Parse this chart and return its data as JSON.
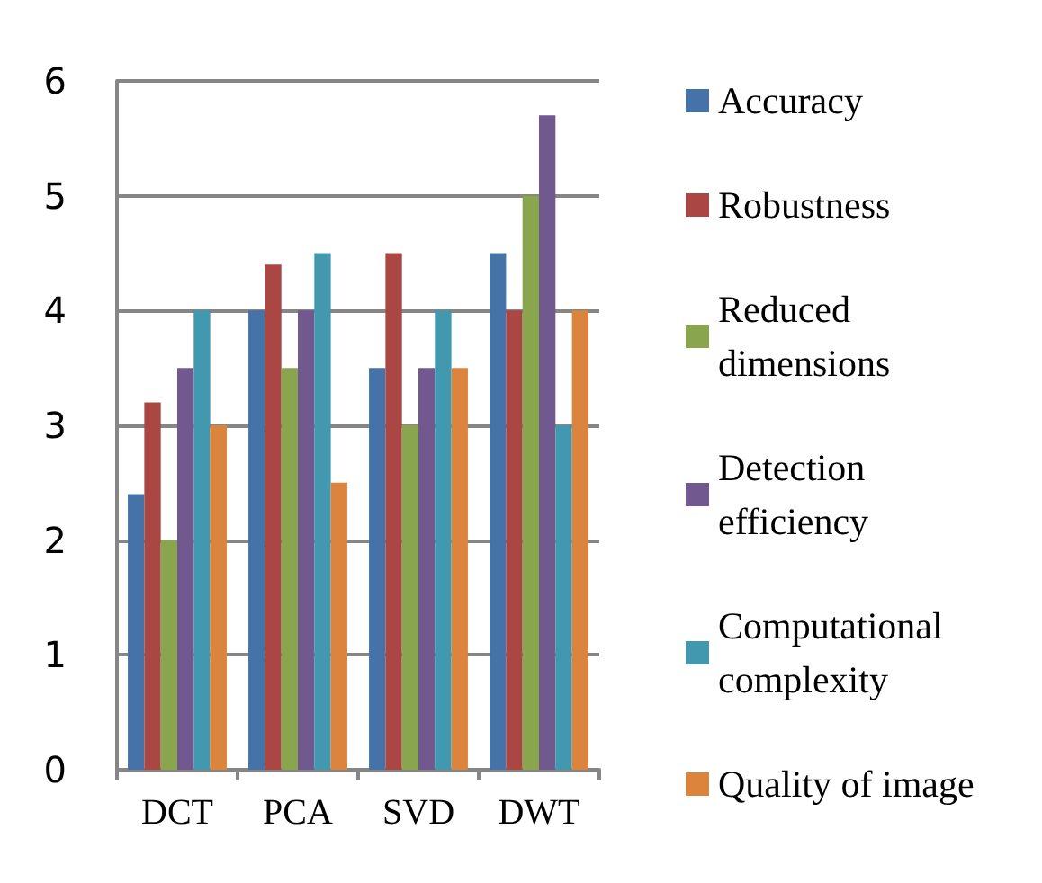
{
  "chart_data": {
    "type": "bar",
    "categories": [
      "DCT",
      "PCA",
      "SVD",
      "DWT"
    ],
    "series": [
      {
        "name": "Accuracy",
        "color": "#4572a7",
        "values": [
          2.4,
          4,
          3.5,
          4.5
        ]
      },
      {
        "name": "Robustness",
        "color": "#aa4643",
        "values": [
          3.2,
          4.4,
          4.5,
          4
        ]
      },
      {
        "name": "Reduced dimensions",
        "color": "#89a54e",
        "values": [
          2,
          3.5,
          3,
          5
        ]
      },
      {
        "name": "Detection efficiency",
        "color": "#71588f",
        "values": [
          3.5,
          4,
          3.5,
          5.7
        ]
      },
      {
        "name": "Computational complexity",
        "color": "#4198af",
        "values": [
          4,
          4.5,
          4,
          3
        ]
      },
      {
        "name": "Quality of image",
        "color": "#db843d",
        "values": [
          3,
          2.5,
          3.5,
          4
        ]
      }
    ],
    "ylim": [
      0,
      6
    ],
    "yticks": [
      0,
      1,
      2,
      3,
      4,
      5,
      6
    ],
    "grid": "y",
    "legend": "right"
  }
}
